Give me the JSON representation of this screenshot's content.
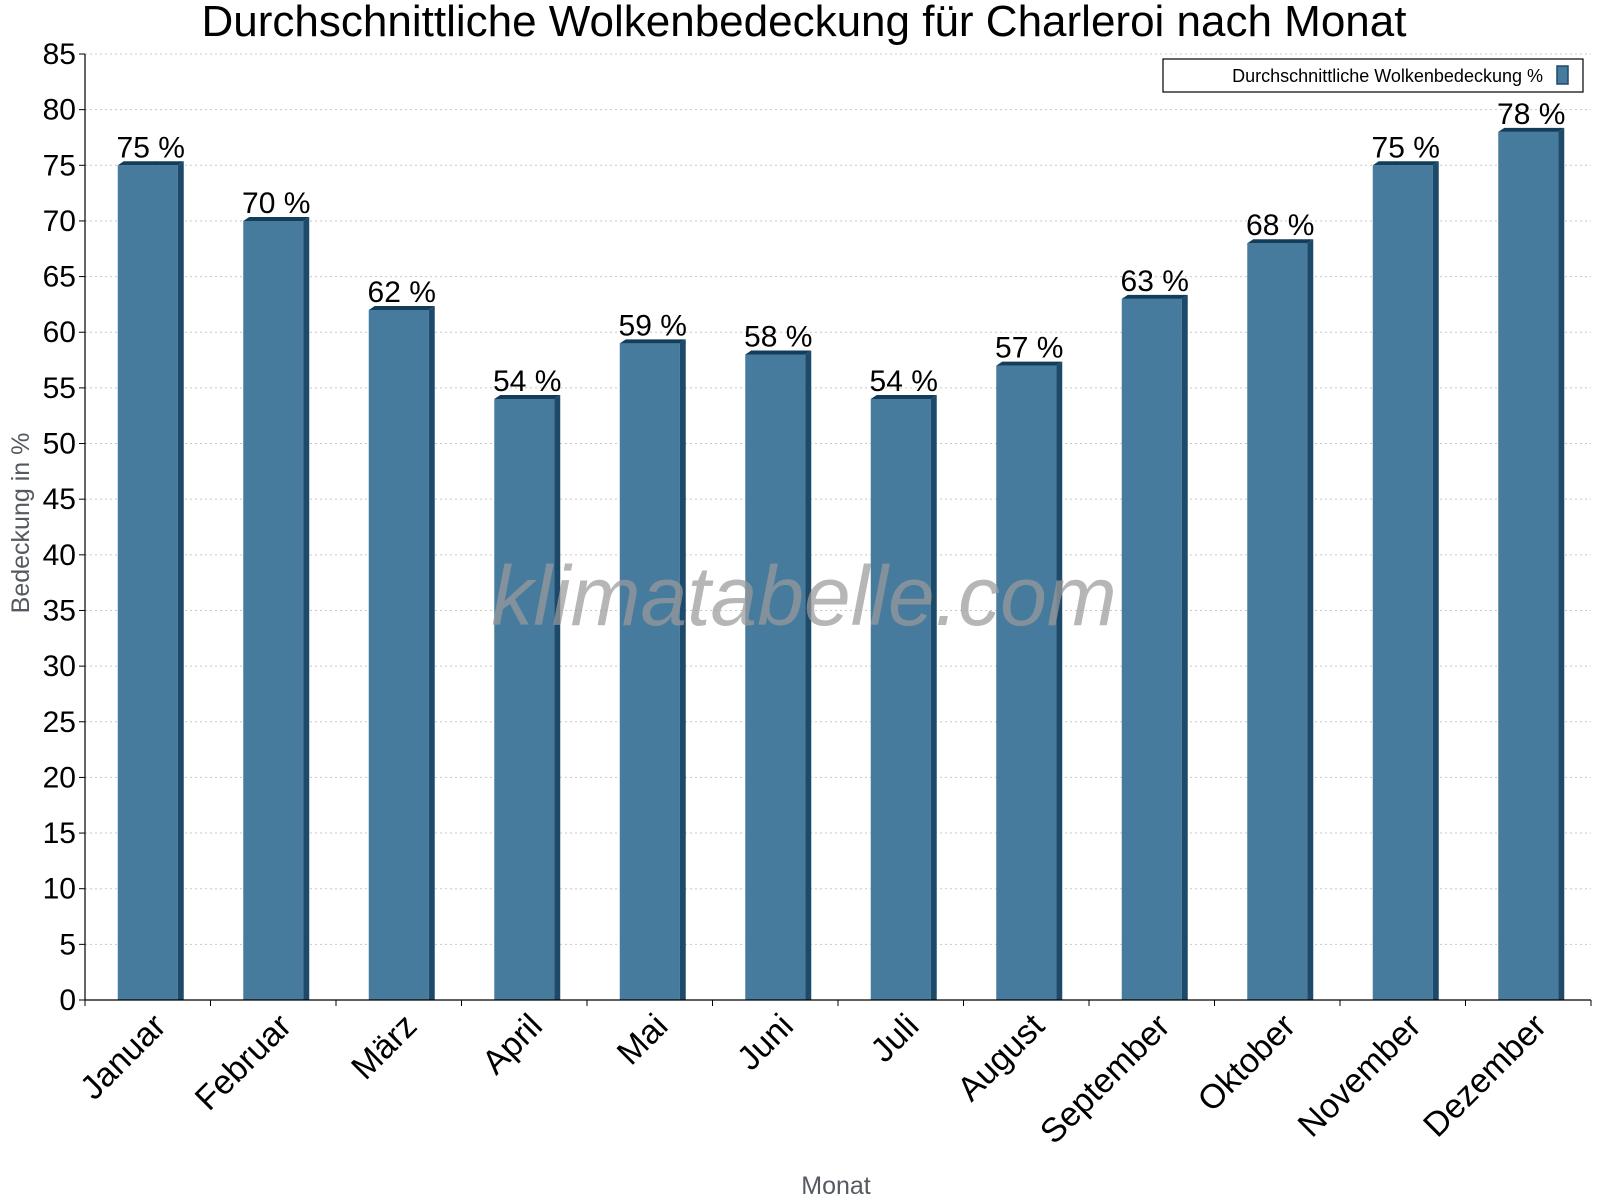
{
  "chart_data": {
    "type": "bar",
    "title": "Durchschnittliche Wolkenbedeckung für Charleroi nach Monat",
    "xlabel": "Monat",
    "ylabel": "Bedeckung in %",
    "categories": [
      "Januar",
      "Februar",
      "März",
      "April",
      "Mai",
      "Juni",
      "Juli",
      "August",
      "September",
      "Oktober",
      "November",
      "Dezember"
    ],
    "series": [
      {
        "name": "Durchschnittliche Wolkenbedeckung %",
        "values": [
          75,
          70,
          62,
          54,
          59,
          58,
          54,
          57,
          63,
          68,
          75,
          78
        ],
        "labels": [
          "75 %",
          "70 %",
          "62 %",
          "54 %",
          "59 %",
          "58 %",
          "54 %",
          "57 %",
          "63 %",
          "68 %",
          "75 %",
          "78 %"
        ],
        "color": "#467b9d"
      }
    ],
    "ylim": [
      0,
      85
    ],
    "yticks": [
      "0",
      "5",
      "10",
      "15",
      "20",
      "25",
      "30",
      "35",
      "40",
      "45",
      "50",
      "55",
      "60",
      "65",
      "70",
      "75",
      "80",
      "85"
    ],
    "grid": true,
    "legend_position": "top-right",
    "watermark": "klimatabelle.com",
    "colors": {
      "bar": "#467b9d",
      "bar_side": "#1d4a6a",
      "bar_top": "#123e5c",
      "grid": "#c8c8c8"
    }
  }
}
